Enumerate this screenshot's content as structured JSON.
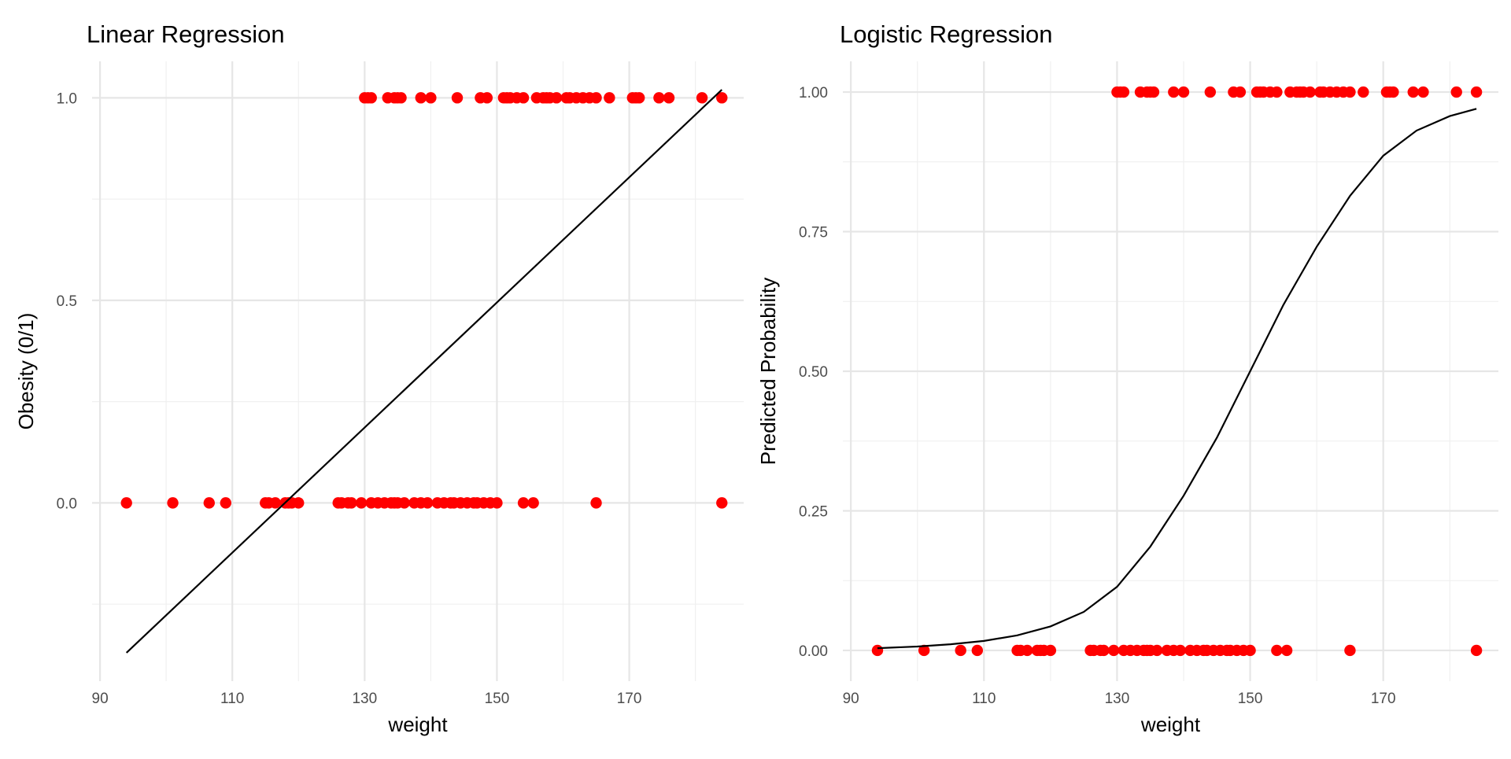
{
  "chart_data": [
    {
      "type": "scatter",
      "title": "Linear Regression",
      "xlabel": "weight",
      "ylabel": "Obesity (0/1)",
      "xlim": [
        88.8,
        187.3
      ],
      "ylim": [
        -0.44,
        1.09
      ],
      "x_ticks": [
        90,
        110,
        130,
        150,
        170
      ],
      "x_tick_labels": [
        "90",
        "110",
        "130",
        "150",
        "170"
      ],
      "y_ticks": [
        0.0,
        0.5,
        1.0
      ],
      "y_tick_labels": [
        "0.0",
        "0.5",
        "1.0"
      ],
      "grid": true,
      "point_color": "#ff0000",
      "line_color": "#000000",
      "series": [
        {
          "type": "scatter",
          "points_y1_x": [
            130.0,
            130.5,
            131.0,
            133.5,
            134.5,
            135.0,
            135.5,
            138.5,
            140.0,
            144.0,
            147.5,
            148.5,
            151.0,
            151.5,
            152.0,
            153.0,
            154.0,
            156.0,
            157.0,
            157.5,
            158.0,
            159.0,
            160.5,
            161.0,
            162.0,
            163.0,
            164.0,
            165.0,
            167.0,
            170.5,
            171.0,
            171.5,
            174.5,
            176.0,
            181.0,
            184.0
          ],
          "points_y0_x": [
            94.0,
            101.0,
            106.5,
            109.0,
            115.0,
            115.5,
            116.5,
            118.0,
            118.5,
            119.0,
            120.0,
            126.0,
            126.5,
            127.5,
            128.0,
            129.5,
            131.0,
            132.0,
            133.0,
            134.0,
            134.5,
            135.0,
            136.0,
            137.5,
            138.5,
            139.5,
            141.0,
            142.0,
            143.0,
            143.5,
            144.5,
            145.5,
            146.5,
            147.0,
            148.0,
            149.0,
            150.0,
            154.0,
            155.5,
            165.0,
            184.0
          ]
        },
        {
          "type": "line",
          "x": [
            94.0,
            184.0
          ],
          "y": [
            -0.37,
            1.02
          ]
        }
      ]
    },
    {
      "type": "scatter",
      "title": "Logistic Regression",
      "xlabel": "weight",
      "ylabel": "Predicted Probability",
      "xlim": [
        88.8,
        187.3
      ],
      "ylim": [
        -0.055,
        1.055
      ],
      "x_ticks": [
        90,
        110,
        130,
        150,
        170
      ],
      "x_tick_labels": [
        "90",
        "110",
        "130",
        "150",
        "170"
      ],
      "y_ticks": [
        0.0,
        0.25,
        0.5,
        0.75,
        1.0
      ],
      "y_tick_labels": [
        "0.00",
        "0.25",
        "0.50",
        "0.75",
        "1.00"
      ],
      "grid": true,
      "point_color": "#ff0000",
      "line_color": "#000000",
      "series": [
        {
          "type": "scatter",
          "points_y1_x": [
            130.0,
            130.5,
            131.0,
            133.5,
            134.5,
            135.0,
            135.5,
            138.5,
            140.0,
            144.0,
            147.5,
            148.5,
            151.0,
            151.5,
            152.0,
            153.0,
            154.0,
            156.0,
            157.0,
            157.5,
            158.0,
            159.0,
            160.5,
            161.0,
            162.0,
            163.0,
            164.0,
            165.0,
            167.0,
            170.5,
            171.0,
            171.5,
            174.5,
            176.0,
            181.0,
            184.0
          ],
          "points_y0_x": [
            94.0,
            101.0,
            106.5,
            109.0,
            115.0,
            115.5,
            116.5,
            118.0,
            118.5,
            119.0,
            120.0,
            126.0,
            126.5,
            127.5,
            128.0,
            129.5,
            131.0,
            132.0,
            133.0,
            134.0,
            134.5,
            135.0,
            136.0,
            137.5,
            138.5,
            139.5,
            141.0,
            142.0,
            143.0,
            143.5,
            144.5,
            145.5,
            146.5,
            147.0,
            148.0,
            149.0,
            150.0,
            154.0,
            155.5,
            165.0,
            184.0
          ]
        },
        {
          "type": "line",
          "x": [
            94,
            100,
            105,
            110,
            115,
            120,
            125,
            130,
            135,
            140,
            145,
            150,
            155,
            160,
            165,
            170,
            175,
            180,
            184
          ],
          "y": [
            0.004,
            0.007,
            0.011,
            0.017,
            0.027,
            0.043,
            0.069,
            0.114,
            0.186,
            0.277,
            0.381,
            0.5,
            0.619,
            0.723,
            0.814,
            0.886,
            0.931,
            0.957,
            0.97
          ]
        }
      ]
    }
  ]
}
